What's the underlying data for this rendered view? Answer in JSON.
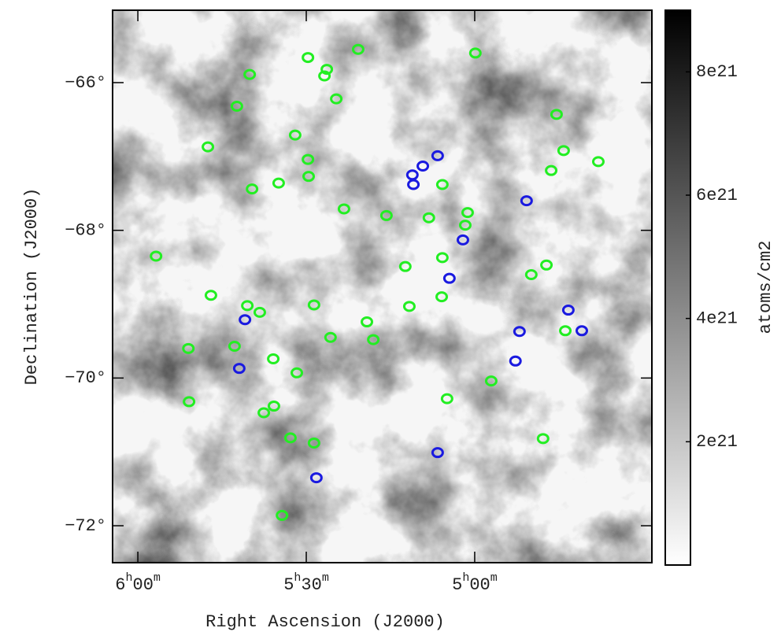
{
  "chart_data": {
    "type": "skymap",
    "xlabel": "Right Ascension (J2000)",
    "ylabel": "Declination (J2000)",
    "xlim": [
      6.075,
      4.474
    ],
    "ylim": [
      -72.5,
      -65.02
    ],
    "xticks": [
      {
        "value": 6.0,
        "label": "6h00m"
      },
      {
        "value": 5.5,
        "label": "5h30m"
      },
      {
        "value": 5.0,
        "label": "5h00m"
      }
    ],
    "yticks": [
      {
        "value": -66,
        "label": "−66°"
      },
      {
        "value": -68,
        "label": "−68°"
      },
      {
        "value": -70,
        "label": "−70°"
      },
      {
        "value": -72,
        "label": "−72°"
      }
    ],
    "colorbar": {
      "label": "atoms/cm2",
      "lim": [
        0,
        9e+21
      ],
      "ticks": [
        {
          "value": 2e+21,
          "label": "2e21"
        },
        {
          "value": 4e+21,
          "label": "4e21"
        },
        {
          "value": 6e+21,
          "label": "6e21"
        },
        {
          "value": 8e+21,
          "label": "8e21"
        }
      ]
    },
    "series": [
      {
        "color": "#22ee22",
        "x": [
          5.495,
          5.346,
          4.998,
          5.668,
          5.439,
          5.446,
          5.411,
          5.706,
          4.757,
          5.792,
          5.533,
          5.495,
          4.736,
          4.633,
          5.493,
          4.773,
          5.582,
          5.661,
          5.096,
          5.388,
          5.262,
          5.136,
          5.021,
          5.028,
          5.946,
          5.206,
          5.096,
          4.832,
          4.787,
          5.783,
          5.098,
          5.477,
          5.194,
          5.675,
          5.638,
          5.32,
          5.428,
          5.301,
          4.731,
          5.85,
          5.713,
          5.598,
          5.528,
          4.951,
          5.848,
          5.082,
          5.596,
          5.626,
          4.797,
          5.547,
          5.477,
          5.572
        ],
        "values": [
          -65.66,
          -65.55,
          -65.6,
          -65.89,
          -65.82,
          -65.91,
          -66.22,
          -66.32,
          -66.43,
          -66.87,
          -66.71,
          -67.04,
          -66.92,
          -67.07,
          -67.27,
          -67.19,
          -67.36,
          -67.44,
          -67.38,
          -67.71,
          -67.8,
          -67.83,
          -67.76,
          -67.93,
          -68.35,
          -68.49,
          -68.37,
          -68.6,
          -68.47,
          -68.88,
          -68.9,
          -69.01,
          -69.03,
          -69.02,
          -69.11,
          -69.24,
          -69.45,
          -69.48,
          -69.36,
          -69.6,
          -69.57,
          -69.74,
          -69.93,
          -70.04,
          -70.32,
          -70.28,
          -70.38,
          -70.47,
          -70.82,
          -70.81,
          -70.88,
          -71.86
        ]
      },
      {
        "color": "#1a1ae0",
        "x": [
          5.11,
          5.154,
          5.185,
          5.182,
          4.846,
          5.035,
          5.075,
          4.722,
          5.682,
          4.867,
          4.682,
          4.879,
          5.699,
          5.11,
          5.47
        ],
        "values": [
          -66.99,
          -67.13,
          -67.25,
          -67.38,
          -67.6,
          -68.13,
          -68.65,
          -69.08,
          -69.21,
          -69.37,
          -69.36,
          -69.77,
          -69.87,
          -71.01,
          -71.35
        ]
      }
    ]
  }
}
